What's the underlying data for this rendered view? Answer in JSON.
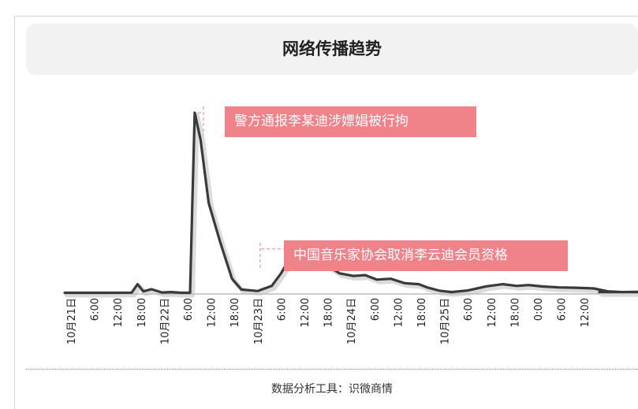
{
  "chart_data": {
    "type": "line",
    "title": "网络传播趋势",
    "xlabel": "",
    "ylabel": "",
    "series": [
      {
        "values": [
          [
            0,
            0.2
          ],
          [
            1.5,
            0.2
          ],
          [
            2.6,
            0.3
          ],
          [
            2.85,
            5
          ],
          [
            3.1,
            1
          ],
          [
            3.45,
            2.2
          ],
          [
            3.9,
            0.4
          ],
          [
            4.3,
            0.6
          ],
          [
            4.7,
            0.2
          ],
          [
            5.1,
            0.2
          ],
          [
            5.2,
            50
          ],
          [
            5.3,
            100
          ],
          [
            5.55,
            85
          ],
          [
            5.9,
            50
          ],
          [
            6.4,
            28
          ],
          [
            6.9,
            8
          ],
          [
            7.3,
            2
          ],
          [
            8.0,
            1.2
          ],
          [
            8.6,
            4
          ],
          [
            9.0,
            11
          ],
          [
            9.4,
            20
          ],
          [
            9.8,
            24.5
          ],
          [
            10.3,
            23
          ],
          [
            10.9,
            16
          ],
          [
            11.5,
            11
          ],
          [
            12.1,
            9.5
          ],
          [
            12.6,
            10
          ],
          [
            13.1,
            7.5
          ],
          [
            13.7,
            8
          ],
          [
            14.3,
            5.5
          ],
          [
            14.9,
            5
          ],
          [
            15.3,
            3
          ],
          [
            15.8,
            1.3
          ],
          [
            16.3,
            0.6
          ],
          [
            17.0,
            1.5
          ],
          [
            17.8,
            3.8
          ],
          [
            18.5,
            5
          ],
          [
            19.1,
            4
          ],
          [
            19.6,
            4.5
          ],
          [
            20.2,
            3.7
          ],
          [
            20.9,
            3.2
          ],
          [
            21.6,
            3
          ],
          [
            22.4,
            2.6
          ],
          [
            23.0,
            1
          ],
          [
            23.6,
            0.6
          ],
          [
            24.3,
            0.7
          ],
          [
            25.2,
            1.5
          ],
          [
            26.0,
            2.3
          ],
          [
            26.8,
            2.2
          ],
          [
            27.6,
            1.8
          ],
          [
            28.5,
            1.6
          ],
          [
            29.4,
            1.4
          ],
          [
            30.5,
            1.3
          ],
          [
            31.6,
            1.2
          ],
          [
            32.4,
            1.1
          ],
          [
            33.0,
            1.4
          ],
          [
            33.5,
            2.8
          ],
          [
            33.9,
            3
          ],
          [
            34.4,
            2.2
          ],
          [
            35.0,
            2.4
          ],
          [
            35.8,
            1.9
          ],
          [
            36.6,
            1.6
          ],
          [
            37.5,
            1.1
          ],
          [
            38.5,
            0.6
          ],
          [
            39.5,
            0.5
          ],
          [
            40.5,
            0.6
          ],
          [
            41.6,
            0.8
          ],
          [
            42.3,
            0.9
          ],
          [
            43.2,
            0.8
          ],
          [
            44.0,
            0.6
          ]
        ]
      }
    ],
    "x_ticks": [
      "10月21日",
      "6:00",
      "12:00",
      "18:00",
      "10月22日",
      "6:00",
      "12:00",
      "18:00",
      "10月23日",
      "6:00",
      "12:00",
      "18:00",
      "10月24日",
      "6:00",
      "12:00",
      "18:00",
      "10月25日",
      "6:00",
      "12:00",
      "18:00",
      "0:00",
      "6:00",
      "12:00"
    ],
    "annotations": [
      {
        "text": "警方通报李某迪涉嫖娼被行拘",
        "x": 5.3
      },
      {
        "text": "中国音乐家协会取消李云迪会员资格",
        "x": 9.8
      }
    ],
    "xlim": [
      0,
      44
    ],
    "ylim": [
      0,
      100
    ],
    "grid": false,
    "legend": "none",
    "line_color": "#3a3a3a",
    "callout_color": "#f0828a"
  },
  "footer": "数据分析工具：识微商情"
}
